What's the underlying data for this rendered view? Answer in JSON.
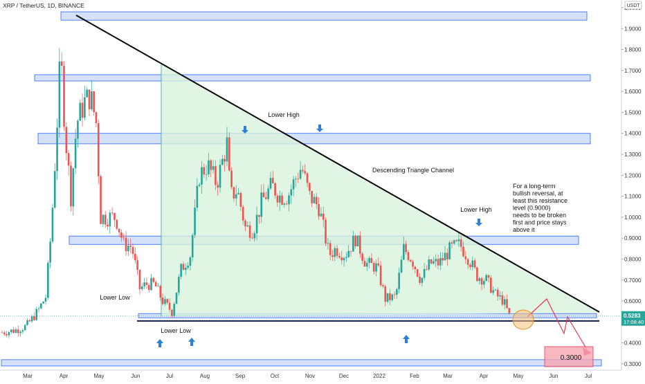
{
  "header": {
    "symbol_title": "XRP / TetherUS, 1D, BINANCE",
    "currency_unit": "USDT"
  },
  "price_badge": {
    "price": "0.5283",
    "countdown": "17:08:40",
    "color": "#26a69a"
  },
  "annotations": {
    "lower_high_1": "Lower High",
    "lower_high_2": "Lower High",
    "lower_low_1": "Lower Low",
    "lower_low_2": "Lower Low",
    "channel": "Descending Triangle Channel",
    "note_lines": [
      "For a long-term",
      "bullish reversal, at",
      "least this resistance",
      "level (0.9000)",
      "needs to be broken",
      "first and price stays",
      "above it"
    ],
    "target": "0.3000"
  },
  "colors": {
    "bull": "#26a69a",
    "bear": "#ef5350",
    "zone_fill": "#c5d7f7",
    "zone_stroke": "#2962ff",
    "triangle_fill": "#d8f3dc",
    "trendline": "#000000",
    "arrow": "#2f7fd8",
    "projection": "#f0324e"
  },
  "chart_data": {
    "type": "candlestick",
    "title": "XRP / TetherUS, 1D, BINANCE",
    "ylabel": "USDT",
    "ylim": [
      0.27,
      2.0
    ],
    "y_ticks": [
      "0.3000",
      "0.4000",
      "0.5000",
      "0.6000",
      "0.7000",
      "0.8000",
      "0.9000",
      "1.0000",
      "1.1000",
      "1.2000",
      "1.3000",
      "1.4000",
      "1.5000",
      "1.6000",
      "1.7000",
      "1.8000",
      "1.9000",
      "2.0000"
    ],
    "x_ticks": [
      "Mar",
      "Apr",
      "May",
      "Jun",
      "Jul",
      "Aug",
      "Sep",
      "Oct",
      "Nov",
      "Dec",
      "2022",
      "Feb",
      "Mar",
      "Apr",
      "May",
      "Jun",
      "Jul"
    ],
    "series": [
      {
        "name": "XRPUSDT close",
        "points": [
          [
            "2021-02-22",
            0.45
          ],
          [
            "2021-03-05",
            0.46
          ],
          [
            "2021-03-15",
            0.48
          ],
          [
            "2021-03-25",
            0.55
          ],
          [
            "2021-04-01",
            0.62
          ],
          [
            "2021-04-06",
            0.95
          ],
          [
            "2021-04-10",
            1.35
          ],
          [
            "2021-04-14",
            1.78
          ],
          [
            "2021-04-18",
            1.4
          ],
          [
            "2021-04-23",
            1.1
          ],
          [
            "2021-04-28",
            1.45
          ],
          [
            "2021-05-05",
            1.55
          ],
          [
            "2021-05-10",
            1.58
          ],
          [
            "2021-05-15",
            1.45
          ],
          [
            "2021-05-19",
            1.0
          ],
          [
            "2021-05-25",
            1.0
          ],
          [
            "2021-06-01",
            1.0
          ],
          [
            "2021-06-08",
            0.87
          ],
          [
            "2021-06-15",
            0.86
          ],
          [
            "2021-06-22",
            0.66
          ],
          [
            "2021-06-28",
            0.68
          ],
          [
            "2021-07-05",
            0.68
          ],
          [
            "2021-07-12",
            0.6
          ],
          [
            "2021-07-20",
            0.55
          ],
          [
            "2021-07-28",
            0.75
          ],
          [
            "2021-08-05",
            0.82
          ],
          [
            "2021-08-13",
            1.2
          ],
          [
            "2021-08-20",
            1.25
          ],
          [
            "2021-08-28",
            1.16
          ],
          [
            "2021-09-06",
            1.35
          ],
          [
            "2021-09-09",
            1.1
          ],
          [
            "2021-09-15",
            1.13
          ],
          [
            "2021-09-22",
            0.95
          ],
          [
            "2021-09-29",
            0.94
          ],
          [
            "2021-10-06",
            1.07
          ],
          [
            "2021-10-15",
            1.15
          ],
          [
            "2021-10-22",
            1.1
          ],
          [
            "2021-10-29",
            1.1
          ],
          [
            "2021-11-06",
            1.2
          ],
          [
            "2021-11-10",
            1.24
          ],
          [
            "2021-11-17",
            1.1
          ],
          [
            "2021-11-25",
            1.05
          ],
          [
            "2021-12-04",
            0.82
          ],
          [
            "2021-12-10",
            0.85
          ],
          [
            "2021-12-18",
            0.82
          ],
          [
            "2021-12-27",
            0.9
          ],
          [
            "2022-01-05",
            0.78
          ],
          [
            "2022-01-15",
            0.76
          ],
          [
            "2022-01-22",
            0.61
          ],
          [
            "2022-01-31",
            0.62
          ],
          [
            "2022-02-07",
            0.85
          ],
          [
            "2022-02-14",
            0.8
          ],
          [
            "2022-02-22",
            0.7
          ],
          [
            "2022-03-02",
            0.78
          ],
          [
            "2022-03-10",
            0.78
          ],
          [
            "2022-03-20",
            0.85
          ],
          [
            "2022-03-28",
            0.87
          ],
          [
            "2022-04-05",
            0.8
          ],
          [
            "2022-04-12",
            0.72
          ],
          [
            "2022-04-20",
            0.7
          ],
          [
            "2022-04-28",
            0.63
          ],
          [
            "2022-05-05",
            0.6
          ],
          [
            "2022-05-10",
            0.53
          ]
        ]
      }
    ],
    "horizontal_zones": [
      [
        1.94,
        1.98
      ],
      [
        1.65,
        1.68
      ],
      [
        1.35,
        1.4
      ],
      [
        0.87,
        0.91
      ],
      [
        0.52,
        0.54
      ],
      [
        0.29,
        0.32
      ]
    ],
    "support_line": 0.505,
    "last_price": 0.5283,
    "target_price": 0.3
  }
}
